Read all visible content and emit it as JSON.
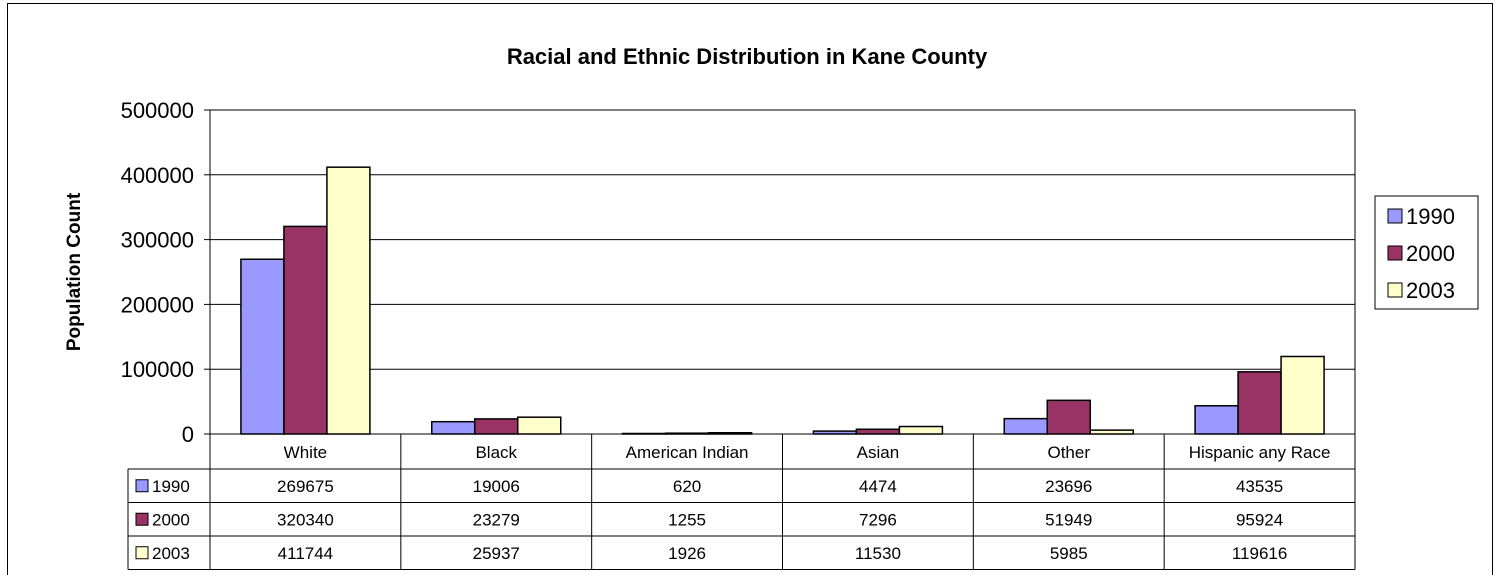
{
  "chart_data": {
    "type": "bar",
    "title": "Racial and Ethnic Distribution in Kane County",
    "xlabel": "",
    "ylabel": "Population Count",
    "ylim": [
      0,
      500000
    ],
    "yticks": [
      "0",
      "100000",
      "200000",
      "300000",
      "400000",
      "500000"
    ],
    "grid": true,
    "legend_position": "right",
    "data_table": true,
    "categories": [
      "White",
      "Black",
      "American Indian",
      "Asian",
      "Other",
      "Hispanic any Race"
    ],
    "series": [
      {
        "name": "1990",
        "color": "#9999ff",
        "values": [
          269675,
          19006,
          620,
          4474,
          23696,
          43535
        ]
      },
      {
        "name": "2000",
        "color": "#993366",
        "values": [
          320340,
          23279,
          1255,
          7296,
          51949,
          95924
        ]
      },
      {
        "name": "2003",
        "color": "#ffffcc",
        "values": [
          411744,
          25937,
          1926,
          11530,
          5985,
          119616
        ]
      }
    ]
  }
}
